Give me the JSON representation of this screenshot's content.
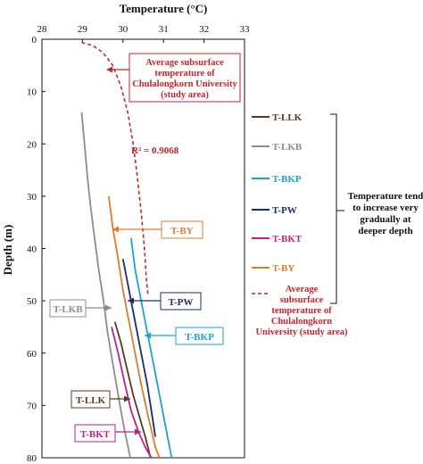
{
  "chart_data": {
    "type": "line",
    "title": "",
    "xlabel": "Temperature (°C)",
    "ylabel": "Depth (m)",
    "xlim": [
      28,
      33
    ],
    "ylim": [
      0,
      80
    ],
    "y_inverted": true,
    "x_axis_position": "top",
    "x_ticks": [
      "28",
      "29",
      "30",
      "31",
      "32",
      "33"
    ],
    "y_ticks": [
      "0",
      "10",
      "20",
      "30",
      "40",
      "50",
      "60",
      "70",
      "80"
    ],
    "series": [
      {
        "name": "T-LLK",
        "color": "#5a3a1e",
        "dash": false,
        "points": [
          [
            29.8,
            54
          ],
          [
            29.95,
            58
          ],
          [
            30.1,
            63
          ],
          [
            30.25,
            68
          ],
          [
            30.4,
            72
          ],
          [
            30.55,
            76
          ],
          [
            30.68,
            80
          ]
        ]
      },
      {
        "name": "T-LKB",
        "color": "#8c8c8c",
        "dash": false,
        "points": [
          [
            28.98,
            14
          ],
          [
            29.05,
            20
          ],
          [
            29.12,
            26
          ],
          [
            29.2,
            32
          ],
          [
            29.3,
            38
          ],
          [
            29.4,
            44
          ],
          [
            29.52,
            50
          ],
          [
            29.62,
            56
          ],
          [
            29.75,
            62
          ],
          [
            29.88,
            68
          ],
          [
            30.02,
            74
          ],
          [
            30.18,
            80
          ]
        ]
      },
      {
        "name": "T-BKP",
        "color": "#1aa3d1",
        "dash": false,
        "points": [
          [
            30.2,
            38
          ],
          [
            30.3,
            44
          ],
          [
            30.45,
            50
          ],
          [
            30.6,
            56
          ],
          [
            30.75,
            62
          ],
          [
            30.9,
            68
          ],
          [
            31.05,
            74
          ],
          [
            31.2,
            80
          ]
        ]
      },
      {
        "name": "T-PW",
        "color": "#1f2a6e",
        "dash": false,
        "points": [
          [
            30.0,
            42
          ],
          [
            30.15,
            48
          ],
          [
            30.3,
            54
          ],
          [
            30.45,
            60
          ],
          [
            30.6,
            66
          ],
          [
            30.7,
            71
          ],
          [
            30.8,
            76
          ]
        ]
      },
      {
        "name": "T-BKT",
        "color": "#c21e8c",
        "dash": false,
        "points": [
          [
            29.72,
            55
          ],
          [
            29.88,
            60
          ],
          [
            30.05,
            66
          ],
          [
            30.2,
            71
          ],
          [
            30.38,
            75
          ],
          [
            30.55,
            78
          ],
          [
            30.7,
            80
          ]
        ]
      },
      {
        "name": "T-BY",
        "color": "#e07b2a",
        "dash": false,
        "points": [
          [
            29.65,
            30
          ],
          [
            29.75,
            36
          ],
          [
            29.88,
            42
          ],
          [
            30.0,
            48
          ],
          [
            30.15,
            54
          ],
          [
            30.3,
            60
          ],
          [
            30.45,
            66
          ],
          [
            30.62,
            72
          ],
          [
            30.8,
            78
          ],
          [
            30.9,
            80
          ]
        ]
      },
      {
        "name": "Average subsurface temperature of Chulalongkorn University (study area)",
        "color": "#c0262d",
        "dash": true,
        "points": [
          [
            28.98,
            0.6
          ],
          [
            29.25,
            1.2
          ],
          [
            29.5,
            2.5
          ],
          [
            29.75,
            5
          ],
          [
            29.95,
            9
          ],
          [
            30.12,
            14
          ],
          [
            30.25,
            20
          ],
          [
            30.35,
            26
          ],
          [
            30.45,
            33
          ],
          [
            30.53,
            40
          ],
          [
            30.58,
            46
          ],
          [
            30.62,
            49
          ]
        ]
      }
    ],
    "legend_placement": "right",
    "annotations": {
      "r_squared": "R² = 0.9068",
      "study_box_lines": [
        "Average subsurface",
        "temperature of",
        "Chulalongkorn University",
        "(study area)"
      ],
      "note_lines": [
        "Temperature tend",
        "to increase very",
        "gradually at",
        "deeper depth"
      ],
      "callouts": [
        {
          "label": "T-BY",
          "color": "#e07b2a"
        },
        {
          "label": "T-PW",
          "color": "#1f2a6e"
        },
        {
          "label": "T-LKB",
          "color": "#8c8c8c"
        },
        {
          "label": "T-BKP",
          "color": "#1aa3d1"
        },
        {
          "label": "T-LLK",
          "color": "#5a3a1e"
        },
        {
          "label": "T-BKT",
          "color": "#c21e8c"
        }
      ]
    },
    "legend_avg_lines": [
      "Average",
      "subsurface",
      "temperature of",
      "Chulalongkorn",
      "University (study area)"
    ]
  }
}
